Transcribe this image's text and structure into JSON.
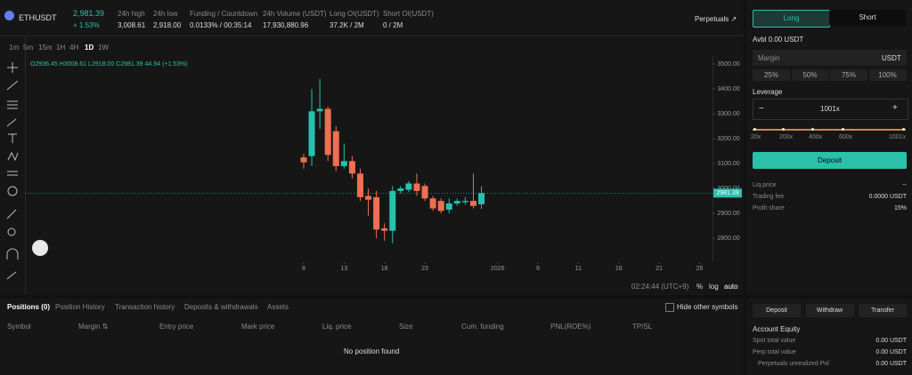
{
  "header": {
    "symbol": "ETHUSDT",
    "price": "2,981.39",
    "change": "+ 1.53%",
    "stats": [
      {
        "label": "24h high",
        "value": "3,008.61"
      },
      {
        "label": "24h low",
        "value": "2,918.00"
      },
      {
        "label": "Funding / Countdown",
        "value": "0.0133% / 00:35:14"
      },
      {
        "label": "24h Volume (USDT)",
        "value": "17,930,880.96"
      },
      {
        "label": "Long OI(USDT)",
        "value": "37.2K / 2M"
      },
      {
        "label": "Short OI(USDT)",
        "value": "0 / 2M"
      }
    ],
    "market": "Perpetuals ↗"
  },
  "toolbar": {
    "intervals": [
      "1m",
      "5m",
      "15m",
      "1H",
      "4H",
      "1D",
      "1W"
    ]
  },
  "legend": {
    "open": "O2936.45",
    "high": "H3008.61",
    "low": "L2918.00",
    "close": "C2981.39",
    "change": "44.94 (+1.53%)"
  },
  "chart": {
    "type": "candlestick",
    "up_color": "#26c2ad",
    "down_color": "#ee6f52",
    "candles": {
      "x": [
        0,
        1,
        2,
        3,
        4,
        5,
        6,
        7,
        8,
        9,
        10,
        11,
        12,
        13,
        14,
        15,
        16,
        17,
        18,
        19,
        20,
        21,
        22
      ],
      "open": [
        3125,
        3130,
        3310,
        3320,
        3230,
        3090,
        3110,
        3060,
        2970,
        2965,
        2840,
        2830,
        2990,
        2995,
        3020,
        3010,
        2960,
        2950,
        2915,
        2940,
        2945,
        2950,
        2936.45
      ],
      "high": [
        3140,
        3400,
        3440,
        3330,
        3250,
        3180,
        3130,
        3080,
        3000,
        2990,
        2860,
        3010,
        3010,
        3030,
        3060,
        3020,
        2970,
        2960,
        2960,
        2960,
        2965,
        3060,
        3008.61
      ],
      "low": [
        3080,
        3090,
        3240,
        3110,
        3070,
        3080,
        3040,
        2950,
        2890,
        2800,
        2790,
        2780,
        2980,
        2985,
        2970,
        2950,
        2910,
        2900,
        2900,
        2930,
        2935,
        2920,
        2918
      ],
      "close": [
        3105,
        3310,
        3320,
        3135,
        3090,
        3110,
        3060,
        2965,
        2955,
        2835,
        2830,
        2990,
        3000,
        3020,
        2990,
        2960,
        2920,
        2910,
        2940,
        2950,
        2950,
        2930,
        2981.39
      ]
    },
    "xlim": [
      -34.5,
      50.6
    ],
    "xticks": [
      {
        "value": 0,
        "label": "8"
      },
      {
        "value": 5,
        "label": "13"
      },
      {
        "value": 10,
        "label": "18"
      },
      {
        "value": 15,
        "label": "23"
      },
      {
        "value": 24,
        "label": "2026"
      },
      {
        "value": 29,
        "label": "6"
      },
      {
        "value": 34,
        "label": "11"
      },
      {
        "value": 39,
        "label": "16"
      },
      {
        "value": 44,
        "label": "21"
      },
      {
        "value": 49,
        "label": "26"
      }
    ],
    "ylim": [
      2704,
      3536
    ],
    "yticks": [
      {
        "value": 2800,
        "label": "2800.00"
      },
      {
        "value": 2900,
        "label": "2900.00"
      },
      {
        "value": 3000,
        "label": "3000.00"
      },
      {
        "value": 3100,
        "label": "3100.00"
      },
      {
        "value": 3200,
        "label": "3200.00"
      },
      {
        "value": 3300,
        "label": "3300.00"
      },
      {
        "value": 3400,
        "label": "3400.00"
      },
      {
        "value": 3500,
        "label": "3500.00"
      }
    ],
    "last_price": 2981.39,
    "grid": false
  },
  "chart_footer": {
    "time": "02:24:44 (UTC+9)",
    "percent": "%",
    "log": "log",
    "auto": "auto"
  },
  "positions": {
    "tabs": [
      "Positions (0)",
      "Position History",
      "Transaction history",
      "Deposits & withdrawals",
      "Assets"
    ],
    "hide_label": "Hide other symbols",
    "columns": [
      "Symbol",
      "Margin ⇅",
      "Entry price",
      "Mark price",
      "Liq. price",
      "Size",
      "Cum. funding",
      "PNL(ROE%)",
      "TP/SL"
    ],
    "empty": "No position found"
  },
  "order": {
    "long": "Long",
    "short": "Short",
    "available": "Avbl 0.00 USDT",
    "margin_placeholder": "Margin",
    "unit": "USDT",
    "percents": [
      "25%",
      "50%",
      "75%",
      "100%"
    ],
    "leverage_label": "Leverage",
    "minus": "−",
    "leverage": "1001x",
    "plus": "+",
    "slider_labels": [
      "20x",
      "200x",
      "400x",
      "600x",
      "1001x"
    ],
    "deposit": "Deposit",
    "info": [
      {
        "label": "Liq.price",
        "value": "--"
      },
      {
        "label": "Trading fee",
        "value": "0.0000 USDT"
      },
      {
        "label": "Profit share",
        "value": "15%"
      }
    ]
  },
  "account": {
    "buttons": [
      "Deposit",
      "Withdraw",
      "Transfer"
    ],
    "title": "Account Equity",
    "rows": [
      {
        "label": "Spot total value",
        "value": "0.00 USDT"
      },
      {
        "label": "Perp total value",
        "value": "0.00 USDT"
      },
      {
        "label": "Perpetuals unrealized Pnl",
        "value": "0.00 USDT"
      }
    ]
  }
}
